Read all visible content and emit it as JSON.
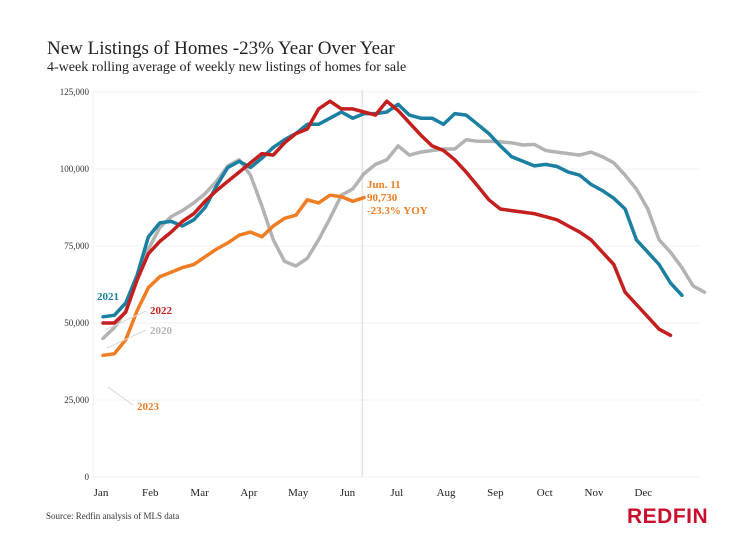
{
  "title": "New Listings of Homes -23% Year Over Year",
  "subtitle": "4-week rolling average of weekly new listings of homes for sale",
  "source": "Source: Redfin analysis of MLS data",
  "logo": "REDFIN",
  "chart_data": {
    "type": "line",
    "title": "New Listings of Homes -23% Year Over Year",
    "subtitle": "4-week rolling average of weekly new listings of homes for sale",
    "xlabel": "",
    "ylabel": "",
    "ylim": [
      0,
      125000
    ],
    "yticks": [
      0,
      25000,
      50000,
      75000,
      100000,
      125000
    ],
    "ytick_labels": [
      "0",
      "25,000",
      "50,000",
      "75,000",
      "100,000",
      "125,000"
    ],
    "categories": [
      "Jan",
      "Feb",
      "Mar",
      "Apr",
      "May",
      "Jun",
      "Jul",
      "Aug",
      "Sep",
      "Oct",
      "Nov",
      "Dec"
    ],
    "x_unit": "week of year (0-51)",
    "grid": true,
    "legend": "inline labels at left",
    "reference_line": {
      "week": 22.5,
      "label": "Jun. 11"
    },
    "annotation": {
      "lines": [
        "Jun. 11",
        "90,730",
        "-23.3% YOY"
      ],
      "series": "2023"
    },
    "series": [
      {
        "name": "2020",
        "color": "#b3b3b3",
        "values": [
          45000,
          48500,
          54000,
          64000,
          74000,
          81000,
          84500,
          86500,
          89000,
          92000,
          96000,
          101000,
          103000,
          98000,
          88000,
          77000,
          70000,
          68500,
          71000,
          77000,
          84000,
          91500,
          93500,
          98500,
          101500,
          103000,
          107500,
          104500,
          105500,
          106000,
          106500,
          106500,
          109500,
          109000,
          109000,
          108800,
          108500,
          107800,
          108000,
          106000,
          105500,
          105000,
          104500,
          105500,
          104000,
          102000,
          98000,
          93500,
          87000,
          77000,
          73000,
          68000,
          62000,
          60000
        ]
      },
      {
        "name": "2021",
        "color": "#1a7fa0",
        "values": [
          52000,
          52500,
          56500,
          65500,
          78000,
          82500,
          83000,
          81500,
          83500,
          87500,
          94500,
          100500,
          102500,
          100500,
          103500,
          107000,
          109500,
          111500,
          114500,
          114500,
          116500,
          118500,
          116500,
          118000,
          118000,
          118500,
          121000,
          117500,
          116500,
          116500,
          114500,
          118000,
          117500,
          114500,
          111500,
          107500,
          104000,
          102500,
          101000,
          101500,
          100800,
          99000,
          98000,
          95000,
          93000,
          90500,
          87000,
          77000,
          73000,
          69000,
          63000,
          59000
        ]
      },
      {
        "name": "2022",
        "color": "#c41e1e",
        "values": [
          50000,
          50000,
          53500,
          64000,
          72500,
          76500,
          79500,
          83000,
          85500,
          89500,
          93000,
          96000,
          99000,
          102000,
          105000,
          104500,
          108500,
          111500,
          113000,
          119500,
          122000,
          119500,
          119500,
          118500,
          117500,
          122000,
          119000,
          115000,
          111000,
          107500,
          106000,
          103000,
          99000,
          94500,
          90000,
          87000,
          86500,
          86000,
          85500,
          84500,
          83500,
          81500,
          79500,
          77000,
          73000,
          69000,
          60000,
          56000,
          52000,
          48000,
          46000
        ]
      },
      {
        "name": "2023",
        "color": "#f07c24",
        "values": [
          39500,
          40000,
          44500,
          54000,
          61500,
          65000,
          66500,
          68000,
          69000,
          71500,
          74000,
          76000,
          78500,
          79500,
          78000,
          81500,
          84000,
          85000,
          90000,
          89000,
          91500,
          91000,
          89500,
          90730
        ]
      }
    ]
  }
}
